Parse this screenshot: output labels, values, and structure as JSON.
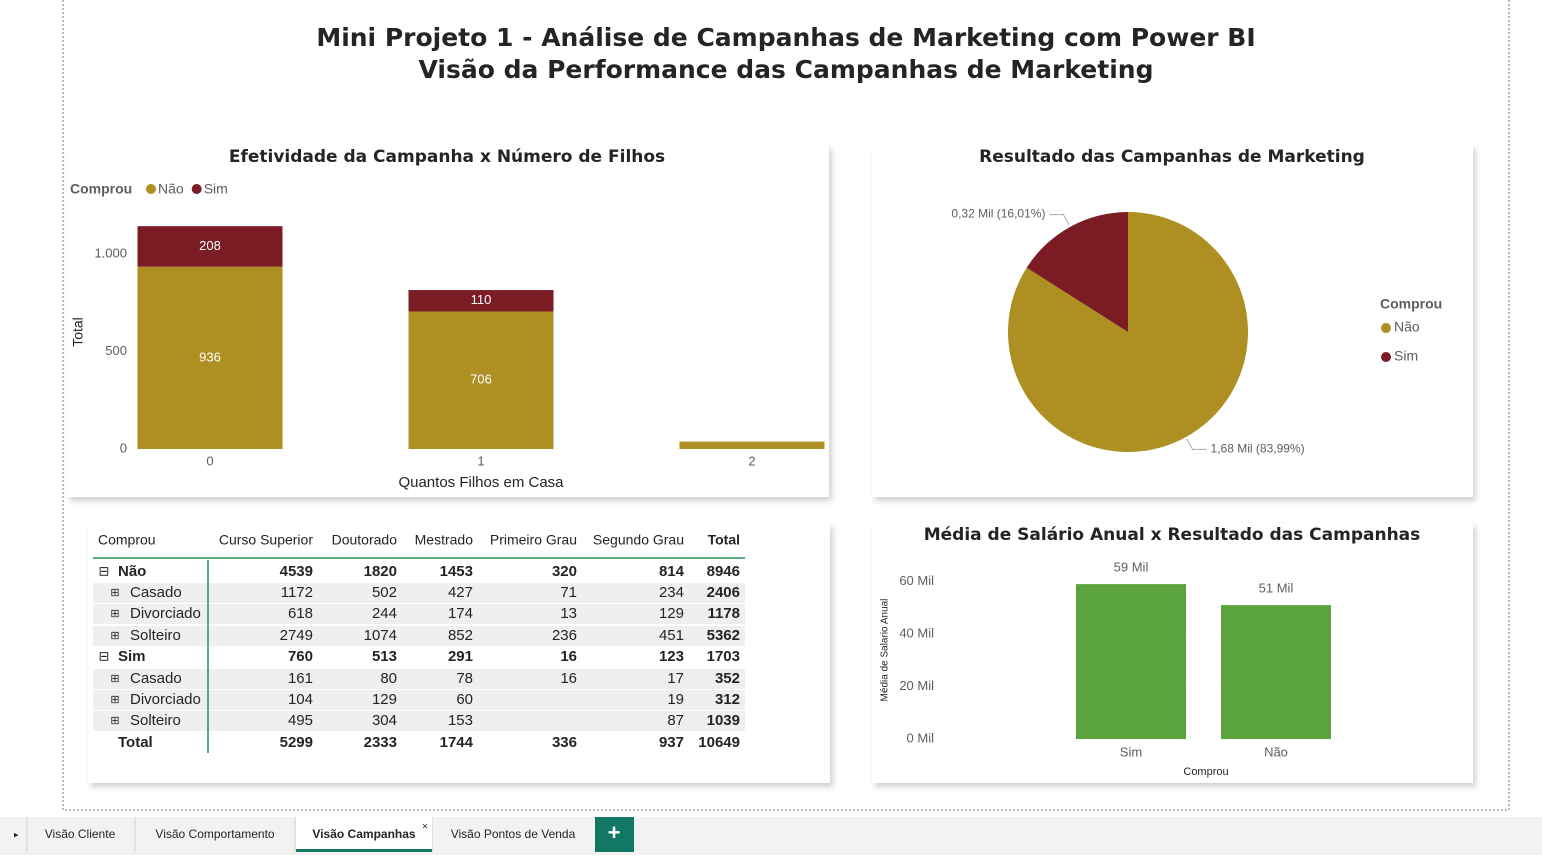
{
  "header": {
    "title": "Mini Projeto 1 - Análise de Campanhas de Marketing com Power BI",
    "subtitle": "Visão da Performance das Campanhas de Marketing"
  },
  "chart_data": [
    {
      "type": "stacked_bar",
      "title": "Efetividade da Campanha x Número de Filhos",
      "legend_title": "Comprou",
      "x_label": "Quantos Filhos em Casa",
      "y_label": "Total",
      "categories": [
        "0",
        "1",
        "2"
      ],
      "series": [
        {
          "name": "Não",
          "color": "#ad8f22",
          "values": [
            936,
            706,
            38
          ]
        },
        {
          "name": "Sim",
          "color": "#7b1c24",
          "values": [
            208,
            110,
            0
          ]
        }
      ],
      "ylim": [
        0,
        1150
      ],
      "yticks": [
        0,
        500,
        {
          "value": 1000,
          "label": "1.000"
        }
      ],
      "grid": true
    },
    {
      "type": "pie",
      "title": "Resultado das Campanhas de Marketing",
      "legend_title": "Comprou",
      "categories": [
        "Não",
        "Sim"
      ],
      "colors": [
        "#ad8f22",
        "#7b1c24"
      ],
      "values": [
        1.68,
        0.32
      ],
      "value_labels": [
        "1,68 Mil (83,99%)",
        "0,32 Mil (16,01%)"
      ]
    },
    {
      "type": "bar",
      "title": "Média de Salário Anual x Resultado das Campanhas",
      "x_label": "Comprou",
      "y_label": "Média de Salario Anual",
      "categories": [
        "Sim",
        "Não"
      ],
      "values": [
        59,
        51
      ],
      "value_labels": [
        "59 Mil",
        "51 Mil"
      ],
      "color": "#5ba33b",
      "ylim": [
        0,
        64
      ],
      "yticks": [
        {
          "value": 0,
          "label": "0 Mil"
        },
        {
          "value": 20,
          "label": "20 Mil"
        },
        {
          "value": 40,
          "label": "40 Mil"
        },
        {
          "value": 60,
          "label": "60 Mil"
        }
      ],
      "grid": true
    }
  ],
  "table": {
    "columns": [
      "Comprou",
      "Curso Superior",
      "Doutorado",
      "Mestrado",
      "Primeiro Grau",
      "Segundo Grau",
      "Total"
    ],
    "groups": [
      {
        "label": "Não",
        "values": [
          4539,
          1820,
          1453,
          320,
          814,
          8946
        ],
        "rows": [
          {
            "label": "Casado",
            "values": [
              1172,
              502,
              427,
              71,
              234,
              2406
            ]
          },
          {
            "label": "Divorciado",
            "values": [
              618,
              244,
              174,
              13,
              129,
              1178
            ]
          },
          {
            "label": "Solteiro",
            "values": [
              2749,
              1074,
              852,
              236,
              451,
              5362
            ]
          }
        ]
      },
      {
        "label": "Sim",
        "values": [
          760,
          513,
          291,
          16,
          123,
          1703
        ],
        "rows": [
          {
            "label": "Casado",
            "values": [
              161,
              80,
              78,
              16,
              17,
              352
            ]
          },
          {
            "label": "Divorciado",
            "values": [
              104,
              129,
              60,
              null,
              19,
              312
            ]
          },
          {
            "label": "Solteiro",
            "values": [
              495,
              304,
              153,
              null,
              87,
              1039
            ]
          }
        ]
      }
    ],
    "total": {
      "label": "Total",
      "values": [
        5299,
        2333,
        1744,
        336,
        937,
        10649
      ]
    }
  },
  "tabs": {
    "items": [
      "Visão Cliente",
      "Visão Comportamento",
      "Visão Campanhas",
      "Visão Pontos de Venda"
    ],
    "active": 2
  }
}
